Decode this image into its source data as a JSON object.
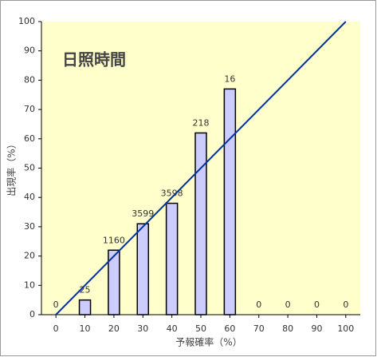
{
  "chart_data": {
    "type": "bar",
    "title": "日照時間",
    "x_label": "予報確率（%）",
    "y_label": "出現率（%）",
    "x": [
      0,
      10,
      20,
      30,
      40,
      50,
      60,
      70,
      80,
      90,
      100
    ],
    "values": [
      0,
      5,
      22,
      31,
      38,
      62,
      77,
      0,
      0,
      0,
      0
    ],
    "data_labels": [
      0,
      25,
      1160,
      3599,
      3598,
      218,
      16,
      0,
      0,
      0,
      0
    ],
    "color": "#ccccff",
    "edge_color": "#000000",
    "reference_line": {
      "x": [
        0,
        100
      ],
      "y": [
        0,
        100
      ],
      "color": "#0033a0"
    },
    "xlim": [
      -5,
      105
    ],
    "xticks": [
      0,
      10,
      20,
      30,
      40,
      50,
      60,
      70,
      80,
      90,
      100
    ],
    "ylim": [
      0,
      100
    ],
    "yticks": [
      0,
      10,
      20,
      30,
      40,
      50,
      60,
      70,
      80,
      90,
      100
    ],
    "plot_background": "#ffffcc"
  }
}
